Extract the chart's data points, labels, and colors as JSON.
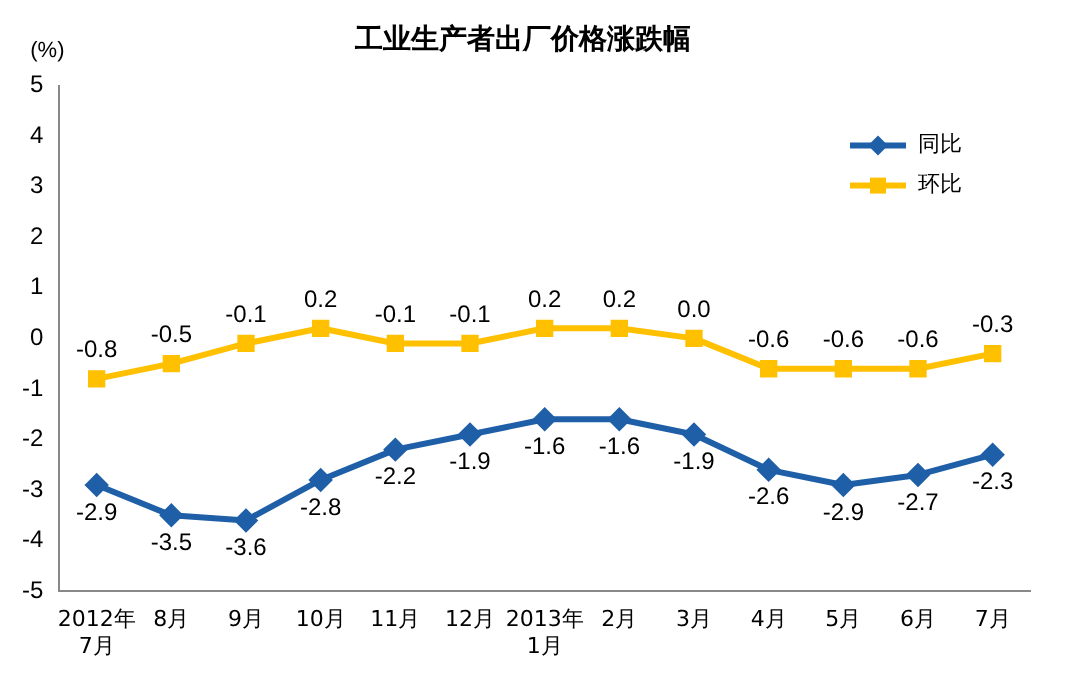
{
  "chart_data": {
    "type": "line",
    "title": "工业生产者出厂价格涨跌幅",
    "ylabel": "(%)",
    "categories": [
      "2012年\n7月",
      "8月",
      "9月",
      "10月",
      "11月",
      "12月",
      "2013年\n1月",
      "2月",
      "3月",
      "4月",
      "5月",
      "6月",
      "7月"
    ],
    "series": [
      {
        "name": "同比",
        "color": "#1f5fa8",
        "marker": "diamond",
        "values": [
          -2.9,
          -3.5,
          -3.6,
          -2.8,
          -2.2,
          -1.9,
          -1.6,
          -1.6,
          -1.9,
          -2.6,
          -2.9,
          -2.7,
          -2.3
        ],
        "value_labels": [
          "-2.9",
          "-3.5",
          "-3.6",
          "-2.8",
          "-2.2",
          "-1.9",
          "-1.6",
          "-1.6",
          "-1.9",
          "-2.6",
          "-2.9",
          "-2.7",
          "-2.3"
        ]
      },
      {
        "name": "环比",
        "color": "#ffc000",
        "marker": "square",
        "values": [
          -0.8,
          -0.5,
          -0.1,
          0.2,
          -0.1,
          -0.1,
          0.2,
          0.2,
          0.0,
          -0.6,
          -0.6,
          -0.6,
          -0.3
        ],
        "value_labels": [
          "-0.8",
          "-0.5",
          "-0.1",
          "0.2",
          "-0.1",
          "-0.1",
          "0.2",
          "0.2",
          "0.0",
          "-0.6",
          "-0.6",
          "-0.6",
          "-0.3"
        ]
      }
    ],
    "ylim": [
      -5,
      5
    ],
    "yticks": [
      -5,
      -4,
      -3,
      -2,
      -1,
      0,
      1,
      2,
      3,
      4,
      5
    ],
    "grid": false,
    "legend": "top right",
    "line_style": "solid"
  }
}
